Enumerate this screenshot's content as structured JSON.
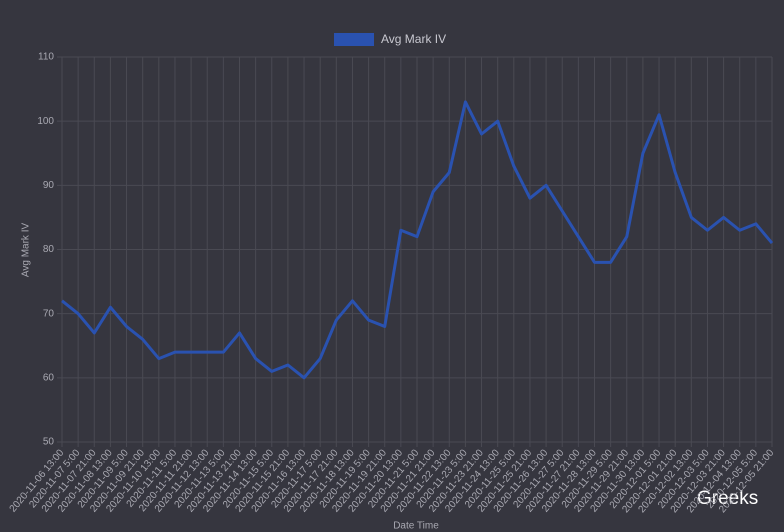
{
  "chart_data": {
    "type": "line",
    "legend": "top",
    "grid": true,
    "ylabel": "Avg Mark IV",
    "xlabel": "Date Time",
    "watermark": "Greeks",
    "ylim": [
      50,
      110
    ],
    "yticks": [
      50,
      60,
      70,
      80,
      90,
      100,
      110
    ],
    "categories": [
      "2020-11-06 13:00",
      "2020-11-07 5:00",
      "2020-11-07 21:00",
      "2020-11-08 13:00",
      "2020-11-09 5:00",
      "2020-11-09 21:00",
      "2020-11-10 13:00",
      "2020-11-11 5:00",
      "2020-11-11 21:00",
      "2020-11-12 13:00",
      "2020-11-13 5:00",
      "2020-11-13 21:00",
      "2020-11-14 13:00",
      "2020-11-15 5:00",
      "2020-11-15 21:00",
      "2020-11-16 13:00",
      "2020-11-17 5:00",
      "2020-11-17 21:00",
      "2020-11-18 13:00",
      "2020-11-19 5:00",
      "2020-11-19 21:00",
      "2020-11-20 13:00",
      "2020-11-21 5:00",
      "2020-11-21 21:00",
      "2020-11-22 13:00",
      "2020-11-23 5:00",
      "2020-11-23 21:00",
      "2020-11-24 13:00",
      "2020-11-25 5:00",
      "2020-11-25 21:00",
      "2020-11-26 13:00",
      "2020-11-27 5:00",
      "2020-11-27 21:00",
      "2020-11-28 13:00",
      "2020-11-29 5:00",
      "2020-11-29 21:00",
      "2020-11-30 13:00",
      "2020-12-01 5:00",
      "2020-12-01 21:00",
      "2020-12-02 13:00",
      "2020-12-03 5:00",
      "2020-12-03 21:00",
      "2020-12-04 13:00",
      "2020-12-05 5:00",
      "2020-12-05 21:00"
    ],
    "series": [
      {
        "name": "Avg Mark IV",
        "color": "#2a52b0",
        "values": [
          72,
          70,
          67,
          71,
          68,
          66,
          63,
          64,
          64,
          64,
          64,
          67,
          63,
          61,
          62,
          60,
          63,
          69,
          72,
          69,
          68,
          83,
          82,
          89,
          92,
          103,
          98,
          100,
          93,
          88,
          90,
          86,
          82,
          78,
          78,
          82,
          95,
          101,
          92,
          85,
          83,
          85,
          83,
          84,
          81
        ]
      }
    ]
  }
}
